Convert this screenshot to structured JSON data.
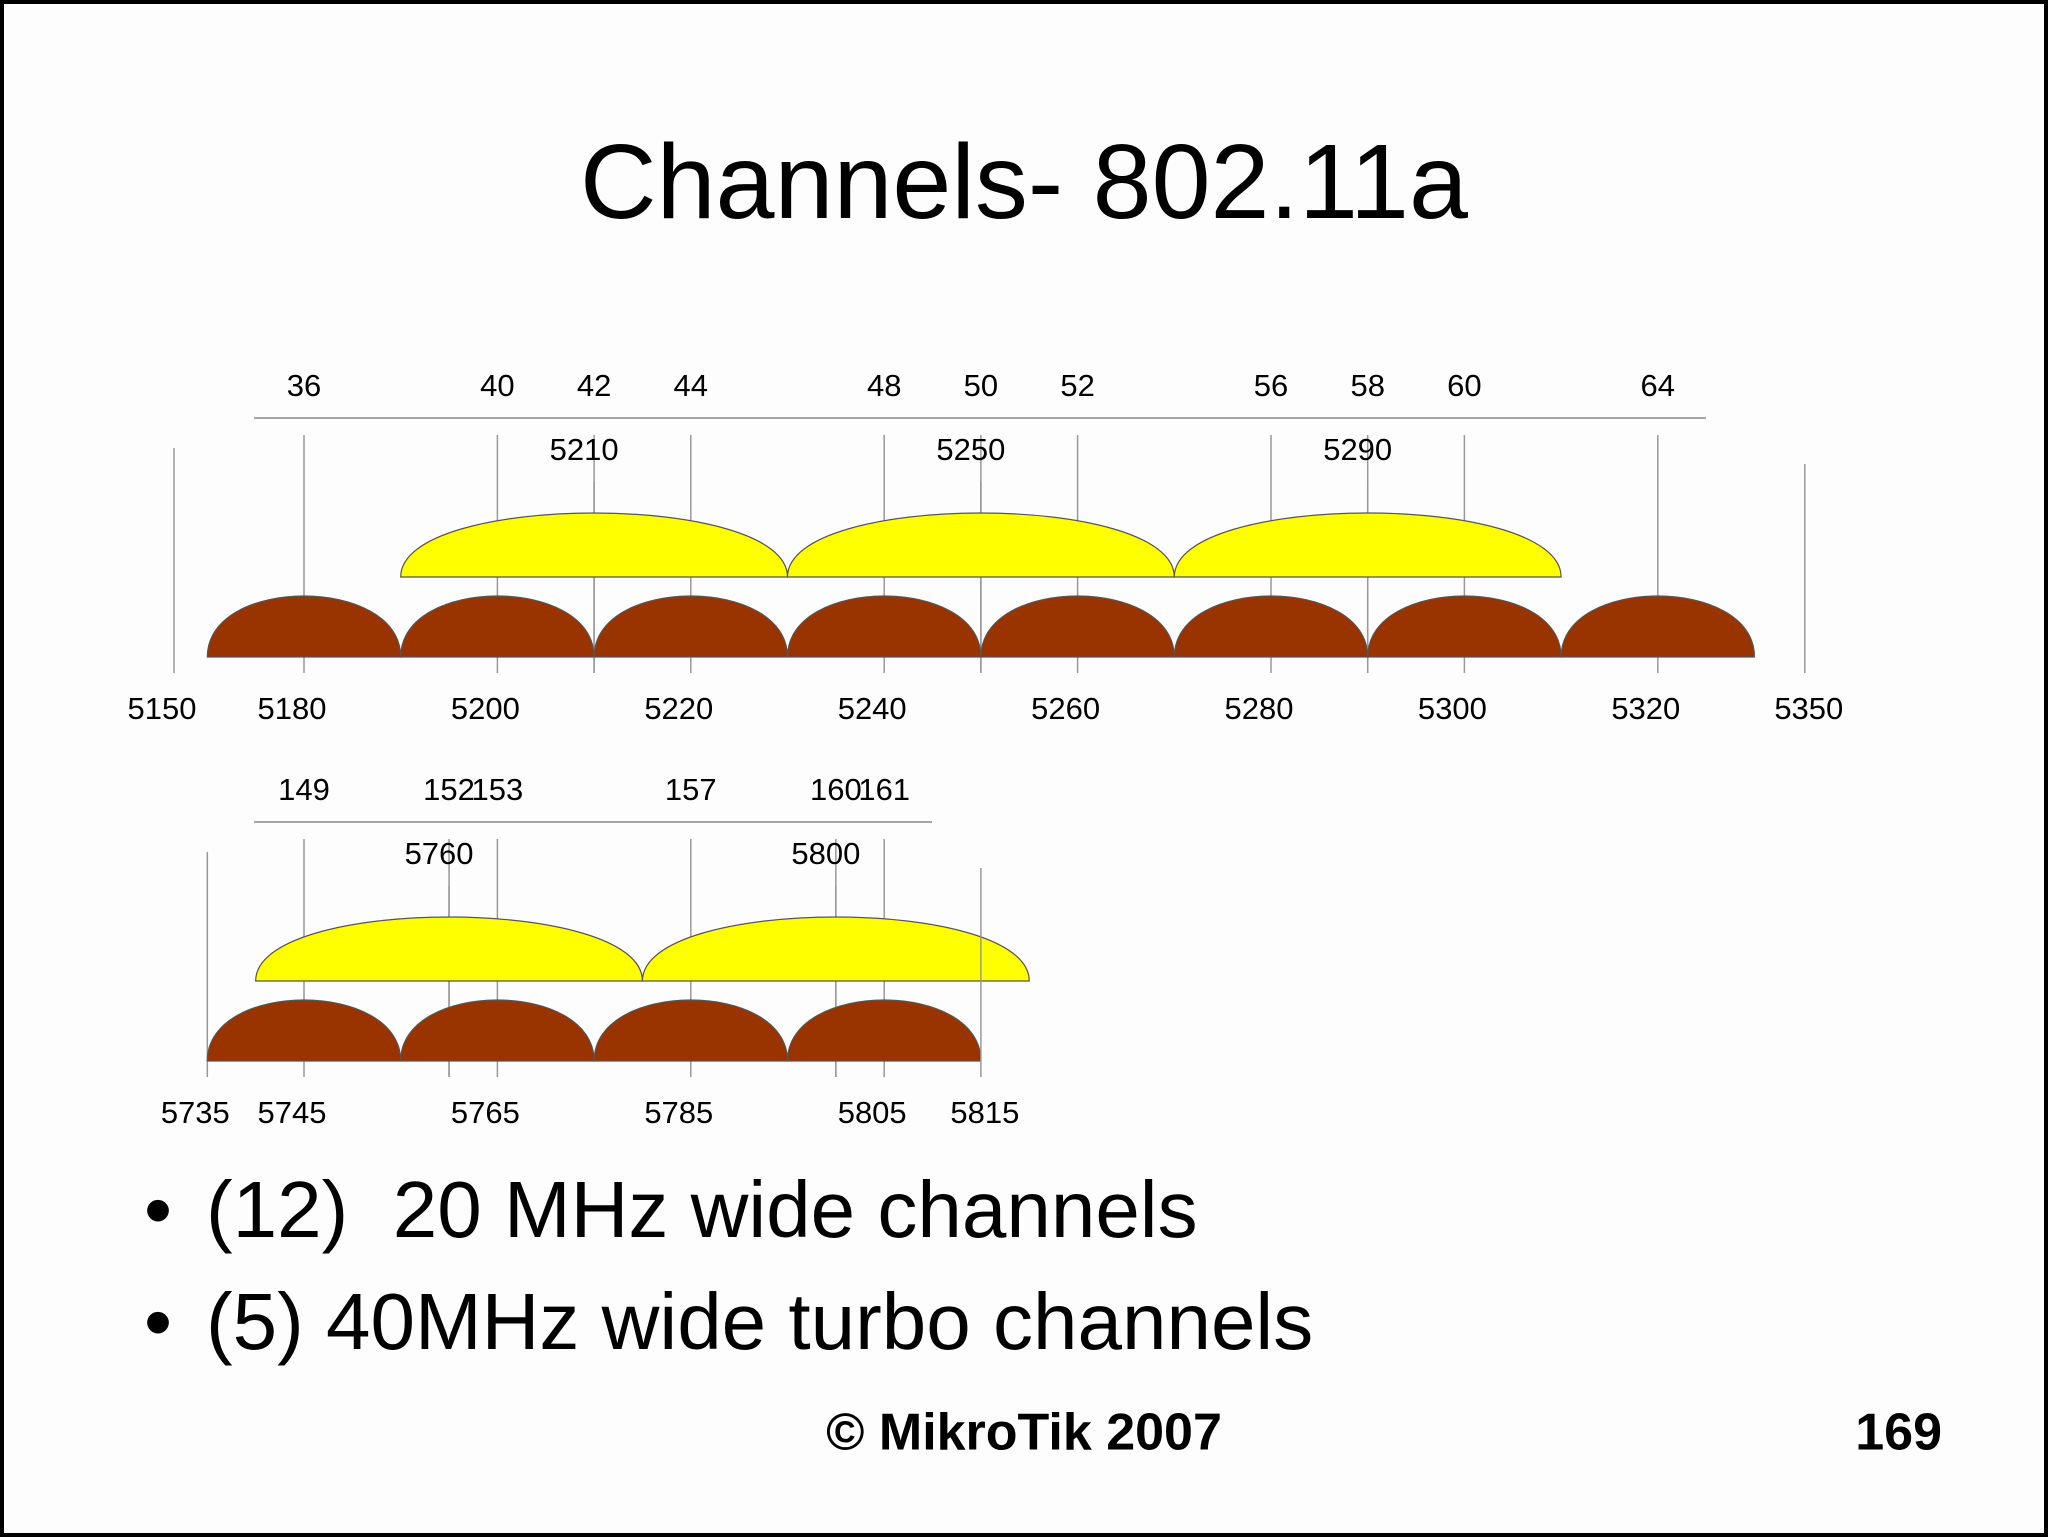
{
  "title": "Channels- 802.11a",
  "bands": [
    {
      "channels": [
        36,
        40,
        42,
        44,
        48,
        50,
        52,
        56,
        58,
        60,
        64
      ],
      "frequencies": [
        5150,
        5180,
        5200,
        5220,
        5240,
        5260,
        5280,
        5300,
        5320,
        5350
      ],
      "turbo_centers": [
        5210,
        5250,
        5290
      ]
    },
    {
      "channels": [
        149,
        152,
        153,
        157,
        160,
        161
      ],
      "frequencies": [
        5735,
        5745,
        5765,
        5785,
        5805,
        5815
      ],
      "turbo_centers": [
        5760,
        5800
      ]
    }
  ],
  "bullets": [
    "(12)  20 MHz wide channels",
    "(5) 40MHz wide turbo channels"
  ],
  "footer": "© MikroTik 2007",
  "page_number": "169"
}
